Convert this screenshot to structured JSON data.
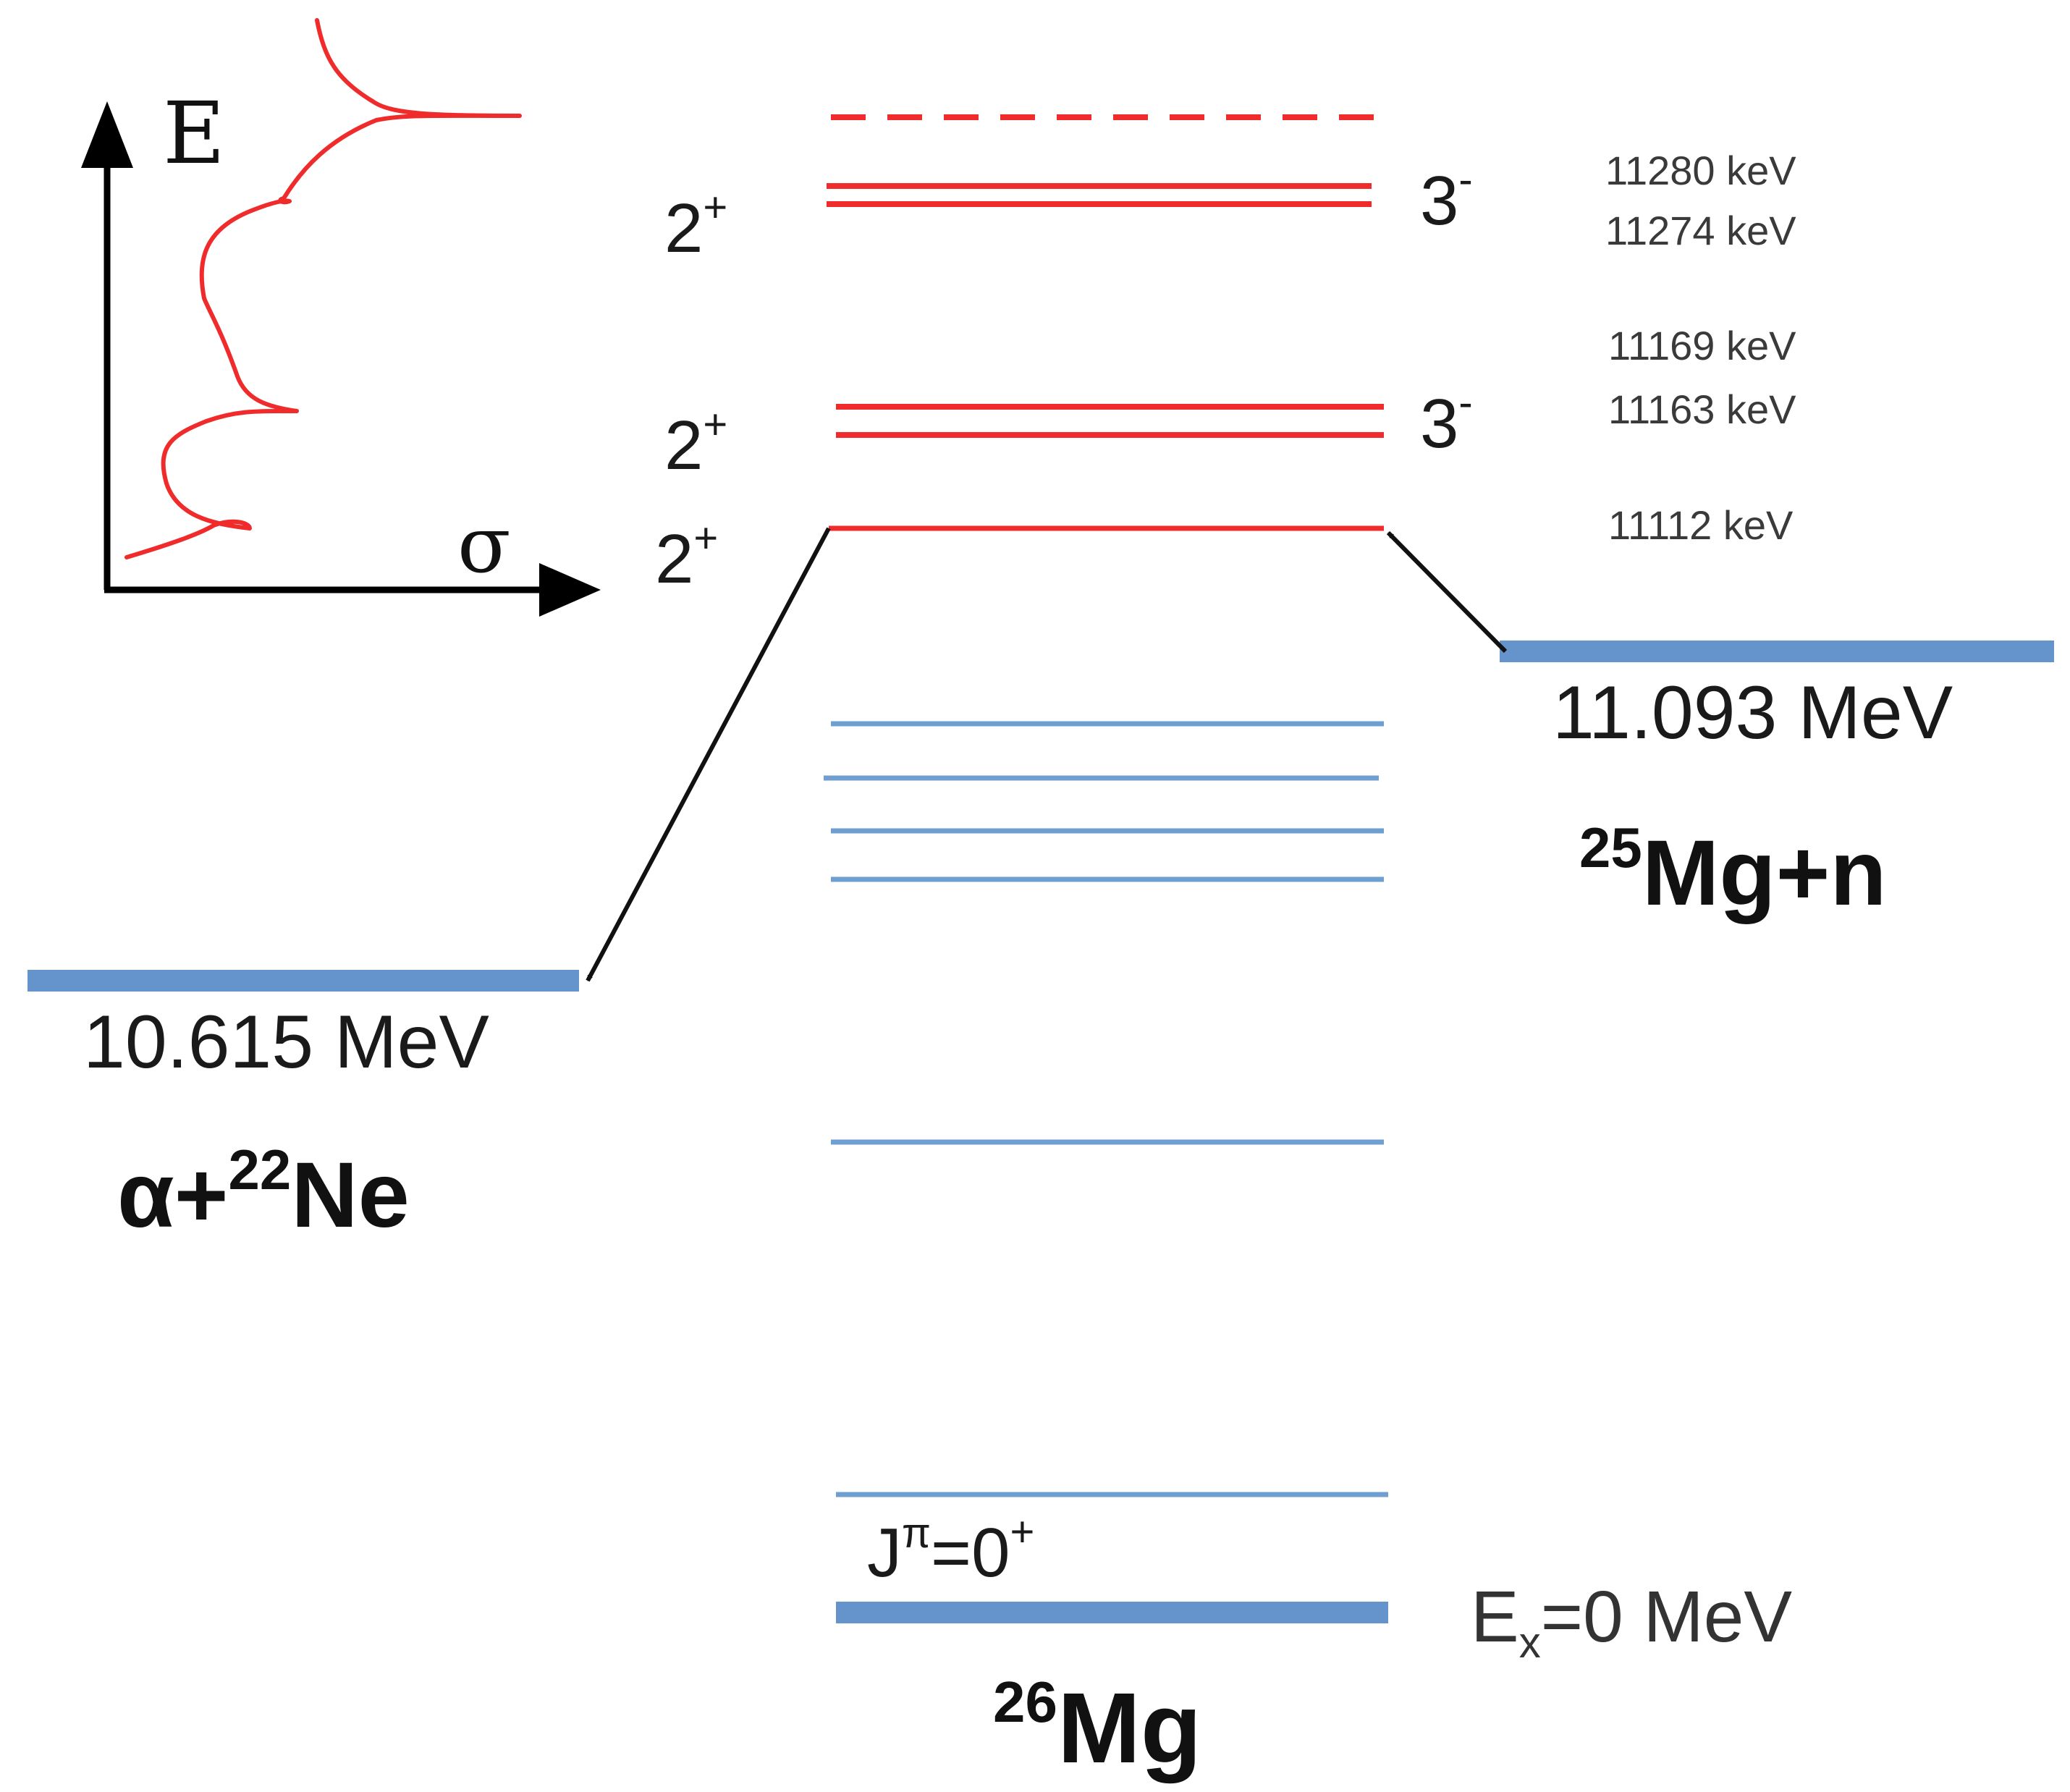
{
  "colors": {
    "resonance": "#ef2b2b",
    "bound_level": "#6f9fd1",
    "threshold": "#6494cb",
    "arrow": "#111111",
    "axis": "#000000",
    "text": "#1a1a1a",
    "energy_text": "#3a3a3a"
  },
  "inset": {
    "y_axis_label": "E",
    "x_axis_label": "σ"
  },
  "spins": {
    "left_top": "2",
    "left_mid": "2",
    "left_low": "2",
    "right_top": "3",
    "right_mid": "3",
    "plus": "+",
    "minus": "-"
  },
  "energies": {
    "e1": "11280 keV",
    "e2": "11274 keV",
    "e3": "11169 keV",
    "e4": "11163 keV",
    "e5": "11112 keV"
  },
  "thresholds": {
    "neutron": {
      "energy": "11.093 MeV",
      "mass": "25",
      "channel": "Mg+n"
    },
    "alpha": {
      "energy": "10.615 MeV",
      "prefix": "α+",
      "mass": "22",
      "channel": "Ne"
    }
  },
  "ground": {
    "jpi_j": "J",
    "jpi_pi": "π",
    "jpi_value": "=0",
    "jpi_plus": "+",
    "ex_e": "E",
    "ex_sub": "x",
    "ex_value": "=0 MeV",
    "nucleus_mass": "26",
    "nucleus_name": "Mg"
  }
}
